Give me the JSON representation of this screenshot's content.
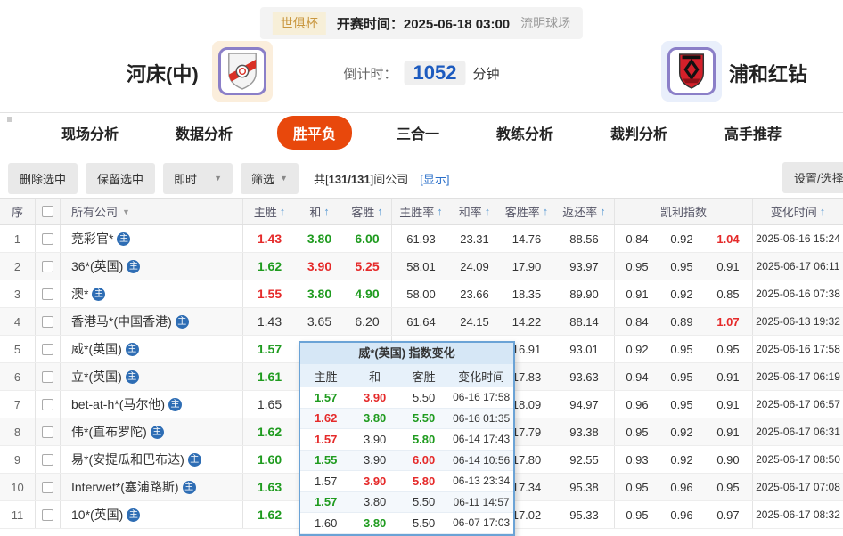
{
  "colors": {
    "red": "#e52a2a",
    "green": "#1f9b1f",
    "accent": "#e8480c",
    "link_blue": "#2a6fc9",
    "countdown_blue": "#1d5bbf"
  },
  "match_header": {
    "league_tag": "世俱杯",
    "kickoff_label": "开赛时间：",
    "kickoff_time": "2025-06-18 03:00",
    "venue": "流明球场",
    "home_team": "河床(中)",
    "away_team": "浦和红钻",
    "countdown_label": "倒计时：",
    "countdown_value": "1052",
    "countdown_unit": "分钟"
  },
  "nav": {
    "tabs": [
      {
        "id": "live-analysis",
        "label": "现场分析",
        "active": false
      },
      {
        "id": "data-analysis",
        "label": "数据分析",
        "active": false
      },
      {
        "id": "win-draw-lose",
        "label": "胜平负",
        "active": true
      },
      {
        "id": "three-in-one",
        "label": "三合一",
        "active": false
      },
      {
        "id": "coach-analysis",
        "label": "教练分析",
        "active": false
      },
      {
        "id": "referee-analysis",
        "label": "裁判分析",
        "active": false
      },
      {
        "id": "expert-picks",
        "label": "高手推荐",
        "active": false
      }
    ]
  },
  "toolbar": {
    "delete_button": "删除选中",
    "keep_button": "保留选中",
    "time_filter": "即时",
    "filter_button": "筛选",
    "count_prefix": "共[",
    "count_value": "131/131",
    "count_suffix": "]间公司",
    "show_link": "[显示]",
    "settings_button": "设置/选择"
  },
  "table": {
    "badge": "主",
    "headers": {
      "index": "序",
      "company": "所有公司",
      "home": "主胜",
      "draw": "和",
      "away": "客胜",
      "home_rate": "主胜率",
      "draw_rate": "和率",
      "away_rate": "客胜率",
      "return_rate": "返还率",
      "kelly": "凯利指数",
      "change_time": "变化时间"
    },
    "rows": [
      {
        "index": "1",
        "company": "竞彩官*",
        "odds": [
          {
            "v": "1.43",
            "c": "red"
          },
          {
            "v": "3.80",
            "c": "green"
          },
          {
            "v": "6.00",
            "c": "green"
          }
        ],
        "rates": [
          "61.93",
          "23.31",
          "14.76",
          "88.56"
        ],
        "kelly": [
          {
            "v": "0.84",
            "c": ""
          },
          {
            "v": "0.92",
            "c": ""
          },
          {
            "v": "1.04",
            "c": "red"
          }
        ],
        "time": "2025-06-16 15:24"
      },
      {
        "index": "2",
        "company": "36*(英国)",
        "odds": [
          {
            "v": "1.62",
            "c": "green"
          },
          {
            "v": "3.90",
            "c": "red"
          },
          {
            "v": "5.25",
            "c": "red"
          }
        ],
        "rates": [
          "58.01",
          "24.09",
          "17.90",
          "93.97"
        ],
        "kelly": [
          {
            "v": "0.95",
            "c": ""
          },
          {
            "v": "0.95",
            "c": ""
          },
          {
            "v": "0.91",
            "c": ""
          }
        ],
        "time": "2025-06-17 06:11"
      },
      {
        "index": "3",
        "company": "澳*",
        "odds": [
          {
            "v": "1.55",
            "c": "red"
          },
          {
            "v": "3.80",
            "c": "green"
          },
          {
            "v": "4.90",
            "c": "green"
          }
        ],
        "rates": [
          "58.00",
          "23.66",
          "18.35",
          "89.90"
        ],
        "kelly": [
          {
            "v": "0.91",
            "c": ""
          },
          {
            "v": "0.92",
            "c": ""
          },
          {
            "v": "0.85",
            "c": ""
          }
        ],
        "time": "2025-06-16 07:38"
      },
      {
        "index": "4",
        "company": "香港马*(中国香港)",
        "odds": [
          {
            "v": "1.43",
            "c": ""
          },
          {
            "v": "3.65",
            "c": ""
          },
          {
            "v": "6.20",
            "c": ""
          }
        ],
        "rates": [
          "61.64",
          "24.15",
          "14.22",
          "88.14"
        ],
        "kelly": [
          {
            "v": "0.84",
            "c": ""
          },
          {
            "v": "0.89",
            "c": ""
          },
          {
            "v": "1.07",
            "c": "red"
          }
        ],
        "time": "2025-06-13 19:32"
      },
      {
        "index": "5",
        "company": "威*(英国)",
        "odds": [
          {
            "v": "1.57",
            "c": "green"
          },
          {
            "v": "",
            "c": ""
          },
          {
            "v": "",
            "c": ""
          }
        ],
        "rates": [
          "",
          "",
          "16.91",
          "93.01"
        ],
        "kelly": [
          {
            "v": "0.92",
            "c": ""
          },
          {
            "v": "0.95",
            "c": ""
          },
          {
            "v": "0.95",
            "c": ""
          }
        ],
        "time": "2025-06-16 17:58"
      },
      {
        "index": "6",
        "company": "立*(英国)",
        "odds": [
          {
            "v": "1.61",
            "c": "green"
          },
          {
            "v": "",
            "c": ""
          },
          {
            "v": "",
            "c": ""
          }
        ],
        "rates": [
          "",
          "",
          "17.83",
          "93.63"
        ],
        "kelly": [
          {
            "v": "0.94",
            "c": ""
          },
          {
            "v": "0.95",
            "c": ""
          },
          {
            "v": "0.91",
            "c": ""
          }
        ],
        "time": "2025-06-17 06:19"
      },
      {
        "index": "7",
        "company": "bet-at-h*(马尔他)",
        "odds": [
          {
            "v": "1.65",
            "c": ""
          },
          {
            "v": "",
            "c": ""
          },
          {
            "v": "",
            "c": ""
          }
        ],
        "rates": [
          "",
          "",
          "18.09",
          "94.97"
        ],
        "kelly": [
          {
            "v": "0.96",
            "c": ""
          },
          {
            "v": "0.95",
            "c": ""
          },
          {
            "v": "0.91",
            "c": ""
          }
        ],
        "time": "2025-06-17 06:57"
      },
      {
        "index": "8",
        "company": "伟*(直布罗陀)",
        "odds": [
          {
            "v": "1.62",
            "c": "green"
          },
          {
            "v": "",
            "c": ""
          },
          {
            "v": "",
            "c": ""
          }
        ],
        "rates": [
          "",
          "",
          "17.79",
          "93.38"
        ],
        "kelly": [
          {
            "v": "0.95",
            "c": ""
          },
          {
            "v": "0.92",
            "c": ""
          },
          {
            "v": "0.91",
            "c": ""
          }
        ],
        "time": "2025-06-17 06:31"
      },
      {
        "index": "9",
        "company": "易*(安提瓜和巴布达)",
        "odds": [
          {
            "v": "1.60",
            "c": "green"
          },
          {
            "v": "",
            "c": ""
          },
          {
            "v": "",
            "c": ""
          }
        ],
        "rates": [
          "",
          "",
          "17.80",
          "92.55"
        ],
        "kelly": [
          {
            "v": "0.93",
            "c": ""
          },
          {
            "v": "0.92",
            "c": ""
          },
          {
            "v": "0.90",
            "c": ""
          }
        ],
        "time": "2025-06-17 08:50"
      },
      {
        "index": "10",
        "company": "Interwet*(塞浦路斯)",
        "odds": [
          {
            "v": "1.63",
            "c": "green"
          },
          {
            "v": "",
            "c": ""
          },
          {
            "v": "",
            "c": ""
          }
        ],
        "rates": [
          "",
          "",
          "17.34",
          "95.38"
        ],
        "kelly": [
          {
            "v": "0.95",
            "c": ""
          },
          {
            "v": "0.96",
            "c": ""
          },
          {
            "v": "0.95",
            "c": ""
          }
        ],
        "time": "2025-06-17 07:08"
      },
      {
        "index": "11",
        "company": "10*(英国)",
        "odds": [
          {
            "v": "1.62",
            "c": "green"
          },
          {
            "v": "",
            "c": ""
          },
          {
            "v": "",
            "c": ""
          }
        ],
        "rates": [
          "",
          "",
          "17.02",
          "95.33"
        ],
        "kelly": [
          {
            "v": "0.95",
            "c": ""
          },
          {
            "v": "0.96",
            "c": ""
          },
          {
            "v": "0.97",
            "c": ""
          }
        ],
        "time": "2025-06-17 08:32"
      }
    ]
  },
  "popup": {
    "title": "威*(英国) 指数变化",
    "headers": [
      "主胜",
      "和",
      "客胜",
      "变化时间"
    ],
    "rows": [
      {
        "odds": [
          {
            "v": "1.57",
            "c": "green"
          },
          {
            "v": "3.90",
            "c": "red"
          },
          {
            "v": "5.50",
            "c": ""
          }
        ],
        "time": "06-16 17:58"
      },
      {
        "odds": [
          {
            "v": "1.62",
            "c": "red"
          },
          {
            "v": "3.80",
            "c": "green"
          },
          {
            "v": "5.50",
            "c": "green"
          }
        ],
        "time": "06-16 01:35"
      },
      {
        "odds": [
          {
            "v": "1.57",
            "c": "red"
          },
          {
            "v": "3.90",
            "c": ""
          },
          {
            "v": "5.80",
            "c": "green"
          }
        ],
        "time": "06-14 17:43"
      },
      {
        "odds": [
          {
            "v": "1.55",
            "c": "green"
          },
          {
            "v": "3.90",
            "c": ""
          },
          {
            "v": "6.00",
            "c": "red"
          }
        ],
        "time": "06-14 10:56"
      },
      {
        "odds": [
          {
            "v": "1.57",
            "c": ""
          },
          {
            "v": "3.90",
            "c": "red"
          },
          {
            "v": "5.80",
            "c": "red"
          }
        ],
        "time": "06-13 23:34"
      },
      {
        "odds": [
          {
            "v": "1.57",
            "c": "green"
          },
          {
            "v": "3.80",
            "c": ""
          },
          {
            "v": "5.50",
            "c": ""
          }
        ],
        "time": "06-11 14:57"
      },
      {
        "odds": [
          {
            "v": "1.60",
            "c": ""
          },
          {
            "v": "3.80",
            "c": "green"
          },
          {
            "v": "5.50",
            "c": ""
          }
        ],
        "time": "06-07 17:03"
      }
    ]
  }
}
